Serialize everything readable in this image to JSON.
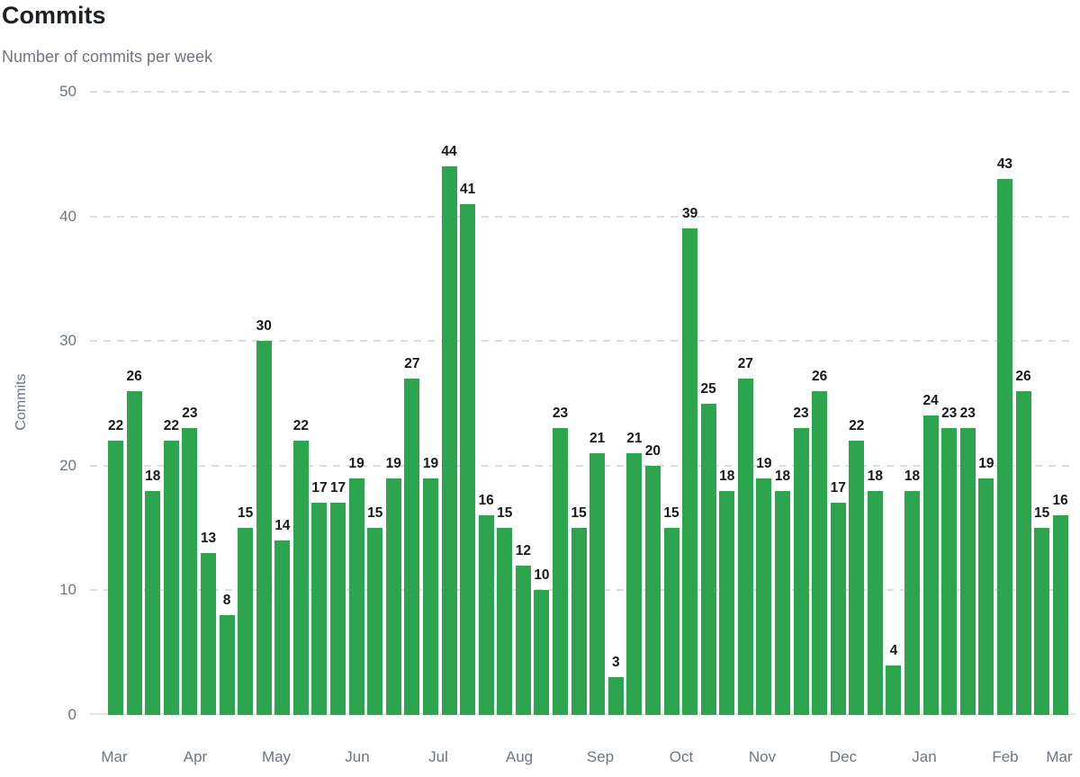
{
  "header": {
    "title": "Commits",
    "subtitle": "Number of commits per week"
  },
  "colors": {
    "bar": "#2da44e",
    "title_text": "#1c2126",
    "axis_text": "#6e7681",
    "value_label_text": "#17191c",
    "gridline": "#d9dee4"
  },
  "chart_data": {
    "type": "bar",
    "title": "Commits",
    "subtitle": "Number of commits per week",
    "xlabel": "",
    "ylabel": "Commits",
    "unit": "commits per week",
    "ylim": [
      0,
      50
    ],
    "yticks": [
      0,
      10,
      20,
      30,
      40,
      50
    ],
    "grid": "horizontal-dashed",
    "legend": "none",
    "value_labels_shown": true,
    "x_tick_labels": [
      "Mar",
      "Apr",
      "May",
      "Jun",
      "Jul",
      "Aug",
      "Sep",
      "Oct",
      "Nov",
      "Dec",
      "Jan",
      "Feb",
      "Mar"
    ],
    "values": [
      22,
      26,
      18,
      22,
      23,
      13,
      8,
      15,
      30,
      14,
      22,
      17,
      17,
      19,
      15,
      19,
      27,
      19,
      44,
      41,
      16,
      15,
      12,
      10,
      23,
      15,
      21,
      3,
      21,
      20,
      15,
      39,
      25,
      18,
      27,
      19,
      18,
      23,
      26,
      17,
      22,
      18,
      4,
      18,
      24,
      23,
      23,
      19,
      43,
      26,
      15,
      16
    ]
  }
}
